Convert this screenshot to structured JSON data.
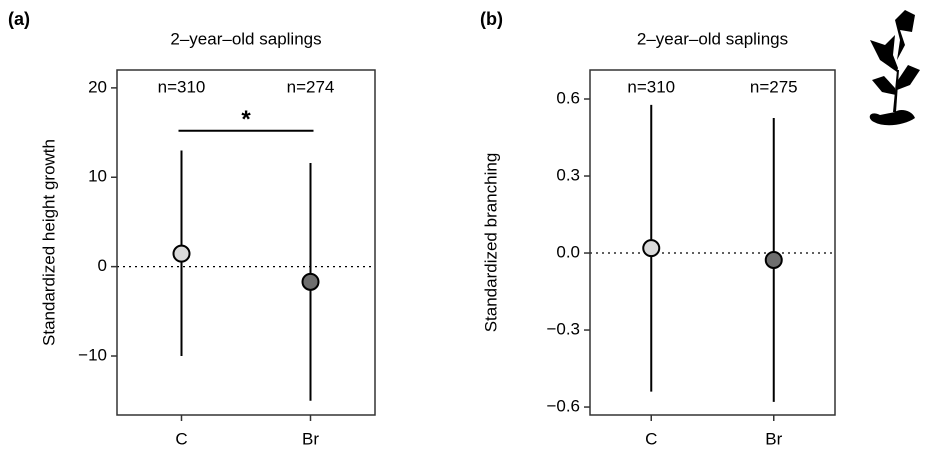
{
  "chart_data": [
    {
      "type": "pointrange",
      "panel_label": "(a)",
      "title": "2–year–old saplings",
      "ylabel": "Standardized height growth",
      "categories": [
        "C",
        "Br"
      ],
      "values": [
        1.45,
        -1.7
      ],
      "lower": [
        -10,
        -15
      ],
      "upper": [
        13,
        11.6
      ],
      "colors": [
        "#d9d9d9",
        "#6e6e6e"
      ],
      "n_labels": [
        "n=310",
        "n=274"
      ],
      "significance": {
        "label": "*",
        "y": 15.2
      },
      "reference_line": 0,
      "ylim": [
        -16.6,
        22
      ],
      "yticks": [
        {
          "value": -10,
          "label": "−10"
        },
        0,
        10,
        20
      ]
    },
    {
      "type": "pointrange",
      "panel_label": "(b)",
      "title": "2–year–old saplings",
      "ylabel": "Standardized branching",
      "categories": [
        "C",
        "Br"
      ],
      "values": [
        0.019,
        -0.027
      ],
      "lower": [
        -0.54,
        -0.58
      ],
      "upper": [
        0.577,
        0.526
      ],
      "colors": [
        "#d9d9d9",
        "#6e6e6e"
      ],
      "n_labels": [
        "n=310",
        "n=275"
      ],
      "reference_line": 0,
      "ylim": [
        -0.631,
        0.713
      ],
      "yticks": [
        {
          "value": -0.6,
          "label": "−0.6"
        },
        {
          "value": -0.3,
          "label": "−0.3"
        },
        {
          "value": 0,
          "label": "0.0"
        },
        0.3,
        0.6
      ]
    }
  ]
}
